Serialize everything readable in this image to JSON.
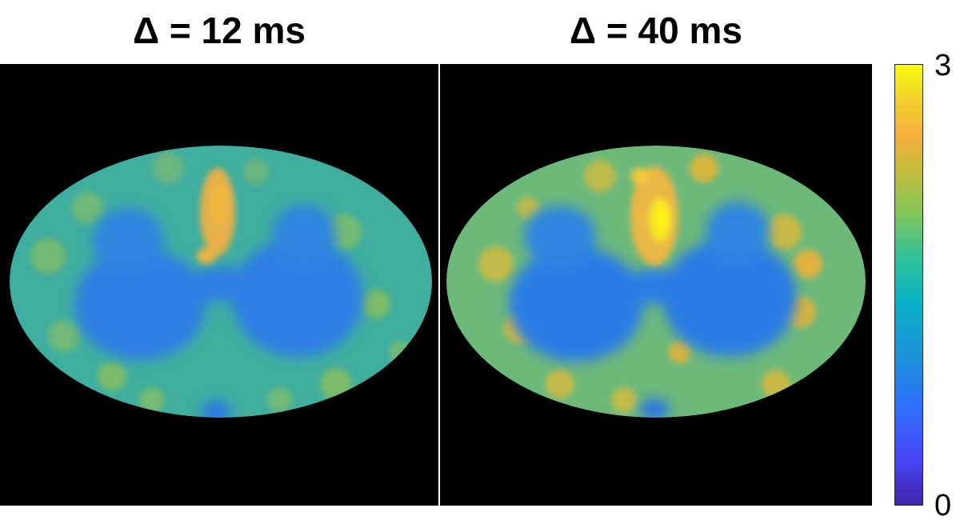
{
  "panels": [
    {
      "title": "Δ = 12 ms",
      "image": "spinal-cord-map-delta-12ms"
    },
    {
      "title": "Δ = 40 ms",
      "image": "spinal-cord-map-delta-40ms"
    }
  ],
  "colorbar": {
    "max_label": "3",
    "min_label": "0",
    "colormap": "parula",
    "colors": {
      "low": "#3e26a8",
      "mid_low": "#2f70fb",
      "mid": "#2ec09a",
      "mid_high": "#f6ae3c",
      "high": "#f9fb0e"
    }
  }
}
